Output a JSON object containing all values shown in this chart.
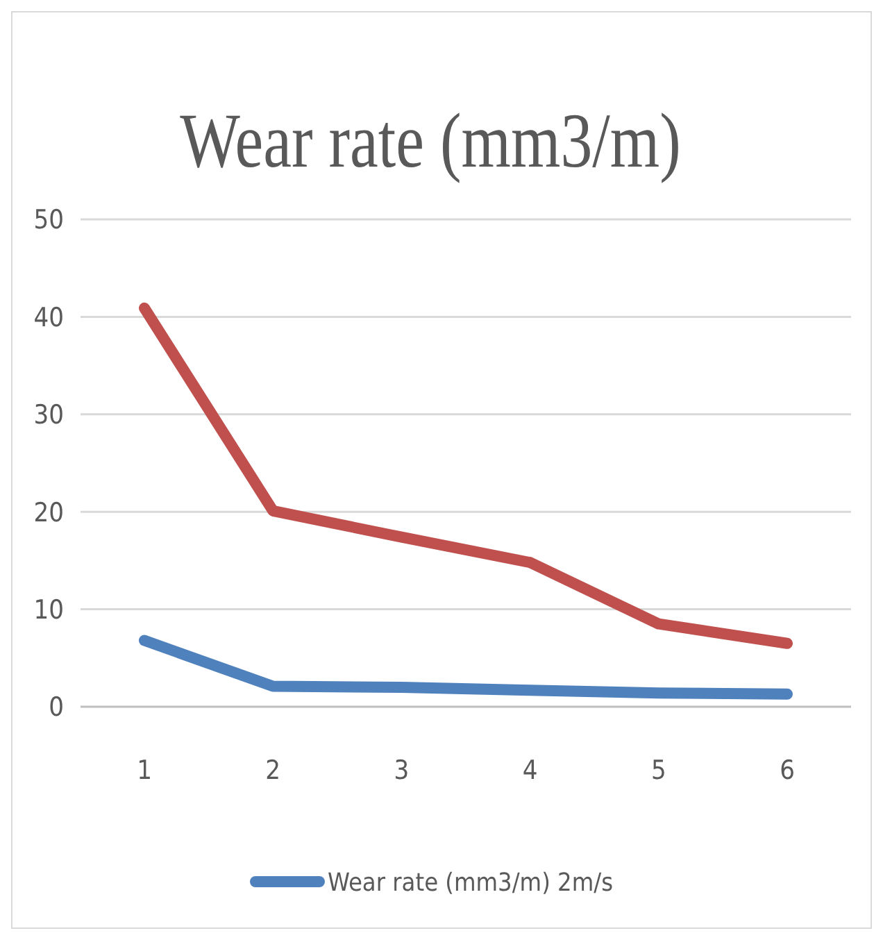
{
  "chart_data": {
    "type": "line",
    "title": "Wear rate (mm3/m)",
    "categories": [
      "1",
      "2",
      "3",
      "4",
      "5",
      "6"
    ],
    "series": [
      {
        "color": "#c0504d",
        "values": [
          40.9,
          20.1,
          17.4,
          14.8,
          8.5,
          6.5
        ]
      },
      {
        "name": "Wear rate (mm3/m) 2m/s",
        "color": "#4f81bd",
        "values": [
          6.8,
          2.1,
          2.0,
          1.7,
          1.4,
          1.3
        ]
      }
    ],
    "ylim": [
      0,
      50
    ],
    "yticks": [
      0,
      10,
      20,
      30,
      40,
      50
    ],
    "grid": "y",
    "legend": "bottom",
    "line_style": "solid"
  }
}
